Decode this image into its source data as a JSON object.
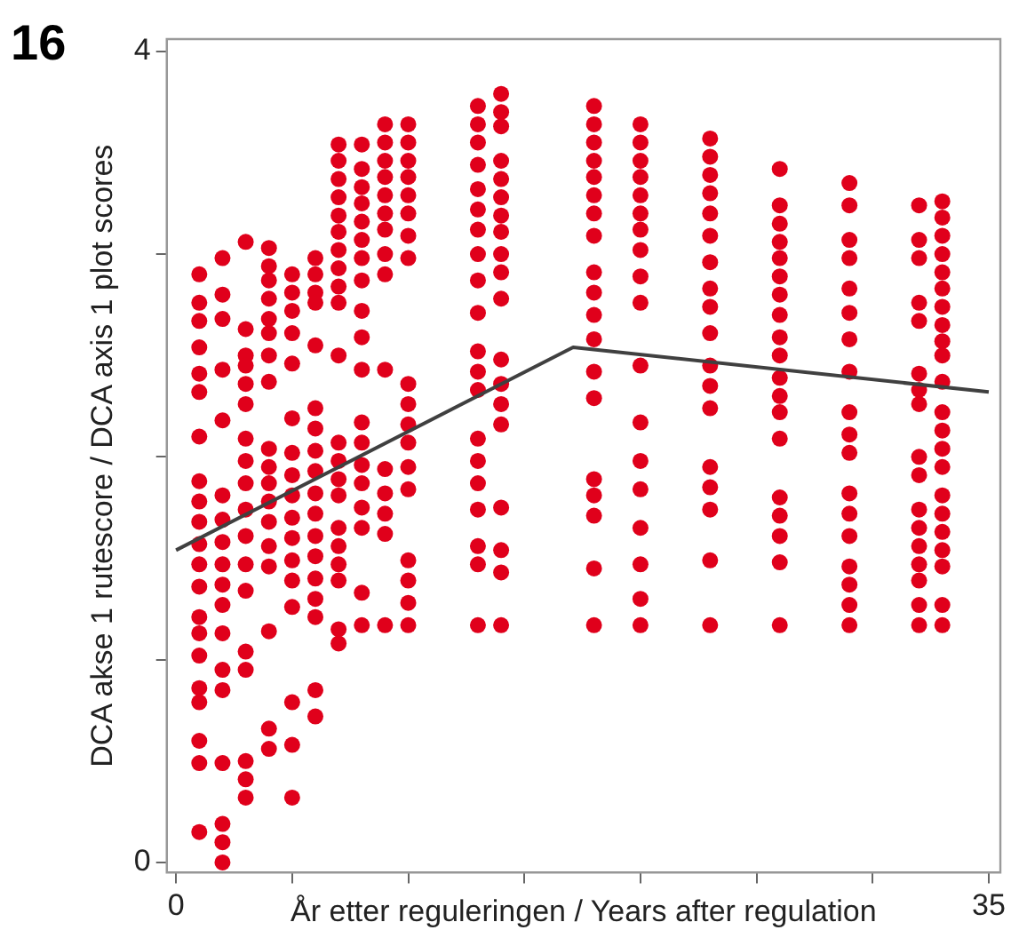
{
  "chart_data": {
    "type": "scatter",
    "xlabel": "År etter reguleringen / Years after regulation",
    "ylabel": "DCA akse 1 rutescore / DCA axis 1 plot scores",
    "annotations": [
      "16"
    ],
    "xlim": [
      -0.4,
      35.5
    ],
    "ylim": [
      -0.05,
      4.06
    ],
    "xticks": [
      0,
      {
        "value": 5,
        "label": null
      },
      {
        "value": 10,
        "label": null
      },
      {
        "value": 15,
        "label": null
      },
      {
        "value": 20,
        "label": null
      },
      {
        "value": 25,
        "label": null
      },
      {
        "value": 30,
        "label": null
      },
      35
    ],
    "yticks": [
      0,
      {
        "value": 1,
        "label": null
      },
      {
        "value": 2,
        "label": null
      },
      {
        "value": 3,
        "label": null
      },
      4
    ],
    "grid": false,
    "legend": false,
    "marker": "circle",
    "series": [
      {
        "color": "#e0001b",
        "x": [
          1,
          1,
          1,
          1,
          1,
          1,
          1,
          1,
          1,
          1,
          1,
          1,
          1,
          1,
          1,
          1,
          1,
          1,
          1,
          1,
          1
        ],
        "values": [
          2.9,
          2.76,
          2.67,
          2.54,
          2.41,
          2.32,
          2.1,
          1.88,
          1.78,
          1.68,
          1.57,
          1.47,
          1.36,
          1.21,
          1.13,
          1.02,
          0.86,
          0.79,
          0.6,
          0.49,
          0.15
        ]
      },
      {
        "color": "#e0001b",
        "x": [
          2,
          2,
          2,
          2,
          2,
          2,
          2,
          2,
          2,
          2,
          2,
          2,
          2,
          2,
          2,
          2,
          2,
          2
        ],
        "values": [
          2.98,
          2.8,
          2.68,
          2.43,
          2.18,
          1.81,
          1.69,
          1.58,
          1.47,
          1.37,
          1.27,
          1.13,
          0.95,
          0.85,
          0.49,
          0.19,
          0.1,
          0
        ]
      },
      {
        "color": "#e0001b",
        "x": [
          3,
          3,
          3,
          3,
          3,
          3,
          3,
          3,
          3,
          3,
          3,
          3,
          3,
          3,
          3,
          3,
          3,
          3
        ],
        "values": [
          3.06,
          2.63,
          2.5,
          2.45,
          2.36,
          2.26,
          2.09,
          1.98,
          1.87,
          1.74,
          1.61,
          1.47,
          1.34,
          1.04,
          0.95,
          0.5,
          0.41,
          0.32
        ]
      },
      {
        "color": "#e0001b",
        "x": [
          4,
          4,
          4,
          4,
          4,
          4,
          4,
          4,
          4,
          4,
          4,
          4,
          4,
          4,
          4,
          4,
          4,
          4
        ],
        "values": [
          3.03,
          2.94,
          2.87,
          2.78,
          2.68,
          2.61,
          2.5,
          2.37,
          2.04,
          1.95,
          1.87,
          1.78,
          1.68,
          1.56,
          1.46,
          1.14,
          0.66,
          0.56
        ]
      },
      {
        "color": "#e0001b",
        "x": [
          5,
          5,
          5,
          5,
          5,
          5,
          5,
          5,
          5,
          5,
          5,
          5,
          5,
          5,
          5,
          5,
          5
        ],
        "values": [
          2.9,
          2.81,
          2.72,
          2.61,
          2.46,
          2.19,
          2.02,
          1.91,
          1.81,
          1.7,
          1.6,
          1.49,
          1.39,
          1.26,
          0.79,
          0.58,
          0.32
        ]
      },
      {
        "color": "#e0001b",
        "x": [
          6,
          6,
          6,
          6,
          6,
          6,
          6,
          6,
          6,
          6,
          6,
          6,
          6,
          6,
          6,
          6,
          6,
          6
        ],
        "values": [
          2.98,
          2.9,
          2.81,
          2.76,
          2.55,
          2.24,
          2.14,
          2.03,
          1.93,
          1.82,
          1.72,
          1.61,
          1.51,
          1.4,
          1.3,
          1.21,
          0.85,
          0.72
        ]
      },
      {
        "color": "#e0001b",
        "x": [
          7,
          7,
          7,
          7,
          7,
          7,
          7,
          7,
          7,
          7,
          7,
          7,
          7,
          7,
          7,
          7,
          7,
          7,
          7,
          7,
          7
        ],
        "values": [
          3.54,
          3.46,
          3.37,
          3.28,
          3.19,
          3.11,
          3.02,
          2.93,
          2.84,
          2.76,
          2.5,
          2.07,
          1.98,
          1.89,
          1.81,
          1.65,
          1.56,
          1.47,
          1.39,
          1.15,
          1.08
        ]
      },
      {
        "color": "#e0001b",
        "x": [
          8,
          8,
          8,
          8,
          8,
          8,
          8,
          8,
          8,
          8,
          8,
          8,
          8,
          8,
          8,
          8,
          8,
          8,
          8
        ],
        "values": [
          3.54,
          3.42,
          3.33,
          3.25,
          3.16,
          3.07,
          2.98,
          2.87,
          2.72,
          2.59,
          2.43,
          2.17,
          2.07,
          1.96,
          1.87,
          1.75,
          1.65,
          1.33,
          1.17
        ]
      },
      {
        "color": "#e0001b",
        "x": [
          9,
          9,
          9,
          9,
          9,
          9,
          9,
          9,
          9,
          9,
          9,
          9,
          9,
          9,
          9
        ],
        "values": [
          3.64,
          3.55,
          3.46,
          3.38,
          3.29,
          3.2,
          3.12,
          3.0,
          2.9,
          2.43,
          1.94,
          1.82,
          1.72,
          1.62,
          1.17
        ]
      },
      {
        "color": "#e0001b",
        "x": [
          10,
          10,
          10,
          10,
          10,
          10,
          10,
          10,
          10,
          10,
          10,
          10,
          10,
          10,
          10,
          10,
          10,
          10
        ],
        "values": [
          3.64,
          3.55,
          3.46,
          3.38,
          3.29,
          3.2,
          3.09,
          2.98,
          2.36,
          2.26,
          2.16,
          2.07,
          1.95,
          1.84,
          1.49,
          1.39,
          1.28,
          1.17
        ]
      },
      {
        "color": "#e0001b",
        "x": [
          13,
          13,
          13,
          13,
          13,
          13,
          13,
          13,
          13,
          13,
          13,
          13,
          13,
          13,
          13,
          13,
          13,
          13,
          13,
          13
        ],
        "values": [
          3.73,
          3.64,
          3.55,
          3.44,
          3.32,
          3.22,
          3.12,
          3.0,
          2.87,
          2.71,
          2.52,
          2.42,
          2.33,
          2.09,
          1.98,
          1.87,
          1.74,
          1.56,
          1.47,
          1.17
        ]
      },
      {
        "color": "#e0001b",
        "x": [
          14,
          14,
          14,
          14,
          14,
          14,
          14,
          14,
          14,
          14,
          14,
          14,
          14,
          14,
          14,
          14,
          14,
          14,
          14
        ],
        "values": [
          3.79,
          3.7,
          3.63,
          3.46,
          3.37,
          3.28,
          3.19,
          3.11,
          3.0,
          2.91,
          2.78,
          2.48,
          2.36,
          2.26,
          2.16,
          1.75,
          1.54,
          1.43,
          1.17
        ]
      },
      {
        "color": "#e0001b",
        "x": [
          18,
          18,
          18,
          18,
          18,
          18,
          18,
          18,
          18,
          18,
          18,
          18,
          18,
          18,
          18,
          18,
          18,
          18,
          18
        ],
        "values": [
          3.73,
          3.64,
          3.55,
          3.46,
          3.38,
          3.29,
          3.2,
          3.09,
          2.91,
          2.81,
          2.7,
          2.58,
          2.42,
          2.29,
          1.89,
          1.81,
          1.71,
          1.45,
          1.17
        ]
      },
      {
        "color": "#e0001b",
        "x": [
          20,
          20,
          20,
          20,
          20,
          20,
          20,
          20,
          20,
          20,
          20,
          20,
          20,
          20,
          20,
          20,
          20,
          20
        ],
        "values": [
          3.64,
          3.55,
          3.46,
          3.38,
          3.29,
          3.2,
          3.12,
          3.02,
          2.89,
          2.76,
          2.45,
          2.17,
          1.98,
          1.84,
          1.65,
          1.47,
          1.3,
          1.17
        ]
      },
      {
        "color": "#e0001b",
        "x": [
          23,
          23,
          23,
          23,
          23,
          23,
          23,
          23,
          23,
          23,
          23,
          23,
          23,
          23,
          23,
          23,
          23,
          23
        ],
        "values": [
          3.57,
          3.48,
          3.39,
          3.3,
          3.2,
          3.09,
          2.96,
          2.83,
          2.74,
          2.61,
          2.45,
          2.35,
          2.24,
          1.95,
          1.85,
          1.74,
          1.49,
          1.17
        ]
      },
      {
        "color": "#e0001b",
        "x": [
          26,
          26,
          26,
          26,
          26,
          26,
          26,
          26,
          26,
          26,
          26,
          26,
          26,
          26,
          26,
          26,
          26,
          26,
          26
        ],
        "values": [
          3.42,
          3.24,
          3.15,
          3.06,
          2.98,
          2.89,
          2.8,
          2.7,
          2.59,
          2.5,
          2.39,
          2.3,
          2.22,
          2.09,
          1.8,
          1.71,
          1.61,
          1.48,
          1.17
        ]
      },
      {
        "color": "#e0001b",
        "x": [
          29,
          29,
          29,
          29,
          29,
          29,
          29,
          29,
          29,
          29,
          29,
          29,
          29,
          29,
          29,
          29,
          29,
          29
        ],
        "values": [
          3.35,
          3.24,
          3.07,
          2.98,
          2.83,
          2.71,
          2.58,
          2.42,
          2.22,
          2.11,
          2.02,
          1.82,
          1.72,
          1.61,
          1.46,
          1.37,
          1.27,
          1.17
        ]
      },
      {
        "color": "#e0001b",
        "x": [
          32,
          32,
          32,
          32,
          32,
          32,
          32,
          32,
          32,
          32,
          32,
          32,
          32,
          32,
          32,
          32,
          32
        ],
        "values": [
          3.24,
          3.07,
          2.98,
          2.76,
          2.67,
          2.41,
          2.33,
          2.26,
          2.0,
          1.91,
          1.74,
          1.65,
          1.56,
          1.47,
          1.39,
          1.27,
          1.17
        ]
      },
      {
        "color": "#e0001b",
        "x": [
          33,
          33,
          33,
          33,
          33,
          33,
          33,
          33,
          33,
          33,
          33,
          33,
          33,
          33,
          33,
          33,
          33,
          33,
          33,
          33,
          33,
          33
        ],
        "values": [
          3.26,
          3.18,
          3.09,
          3.0,
          2.91,
          2.83,
          2.74,
          2.65,
          2.57,
          2.5,
          2.37,
          2.22,
          2.13,
          2.04,
          1.95,
          1.81,
          1.72,
          1.63,
          1.54,
          1.46,
          1.27,
          1.17
        ]
      },
      {
        "type": "line",
        "marker": "none",
        "color": "#404040",
        "x": [
          0,
          17.1,
          35
        ],
        "values": [
          1.54,
          2.54,
          2.32
        ]
      }
    ]
  }
}
